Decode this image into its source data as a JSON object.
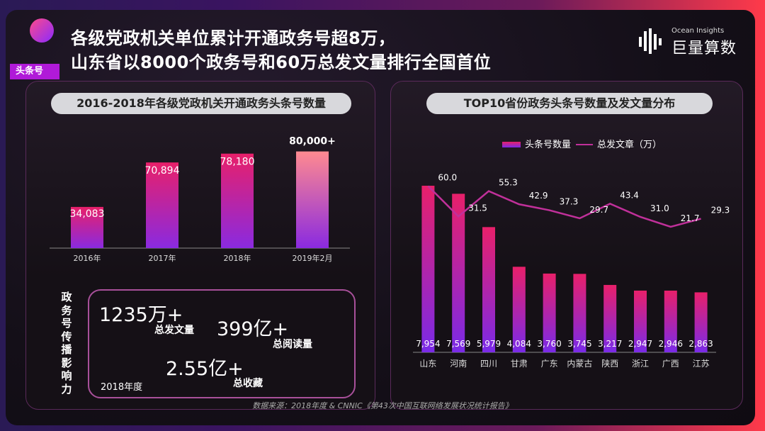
{
  "header": {
    "title_line1": "各级党政机关单位累计开通政务号超8万，",
    "title_line2": "山东省以8000个政务号和60万总发文量排行全国首位",
    "tag": "头条号"
  },
  "brand": {
    "en": "Ocean Insights",
    "cn": "巨量算数"
  },
  "left_chart": {
    "pill": "2016-2018年各级党政机关开通政务头条号数量"
  },
  "right_chart": {
    "pill": "TOP10省份政务头条号数量及发文量分布"
  },
  "stats": {
    "vertical_label": [
      "政",
      "务",
      "号",
      "传",
      "播",
      "影",
      "响",
      "力"
    ],
    "total_posts_value": "1235万+",
    "total_posts_label": "总发文量",
    "total_reads_value": "399亿+",
    "total_reads_label": "总阅读量",
    "total_favs_value": "2.55亿+",
    "total_favs_label": "总收藏",
    "year_label": "2018年度"
  },
  "source": "数据来源：2018年度 & CNNIC《第43次中国互联网络发展状况统计报告》",
  "colors": {
    "accent": "#b01ad8",
    "line": "#c0309a",
    "bar_top": "#e8206a",
    "bar_bottom": "#8a2ae0"
  },
  "chart_data": [
    {
      "type": "bar",
      "title": "2016-2018年各级党政机关开通政务头条号数量",
      "categories": [
        "2016年",
        "2017年",
        "2018年",
        "2019年2月"
      ],
      "values": [
        34083,
        70894,
        78180,
        80000
      ],
      "data_labels": [
        "34,083",
        "70,894",
        "78,180",
        "80,000+"
      ],
      "ylim": [
        0,
        88000
      ]
    },
    {
      "type": "bar+line",
      "title": "TOP10省份政务头条号数量及发文量分布",
      "categories": [
        "山东",
        "河南",
        "四川",
        "甘肃",
        "广东",
        "内蒙古",
        "陕西",
        "浙江",
        "广西",
        "江苏"
      ],
      "legend_placement": "top-center",
      "series": [
        {
          "name": "头条号数量",
          "type": "bar",
          "values": [
            7954,
            7569,
            5979,
            4084,
            3760,
            3745,
            3217,
            2947,
            2946,
            2863
          ],
          "data_labels": [
            "7,954",
            "7,569",
            "5,979",
            "4,084",
            "3,760",
            "3,745",
            "3,217",
            "2,947",
            "2,946",
            "2,863"
          ]
        },
        {
          "name": "总发文章（万）",
          "type": "line",
          "values": [
            60.0,
            31.5,
            55.3,
            42.9,
            37.3,
            29.7,
            43.4,
            31.0,
            21.7,
            29.3
          ],
          "data_labels": [
            "60.0",
            "31.5",
            "55.3",
            "42.9",
            "37.3",
            "29.7",
            "43.4",
            "31.0",
            "21.7",
            "29.3"
          ]
        }
      ]
    }
  ]
}
